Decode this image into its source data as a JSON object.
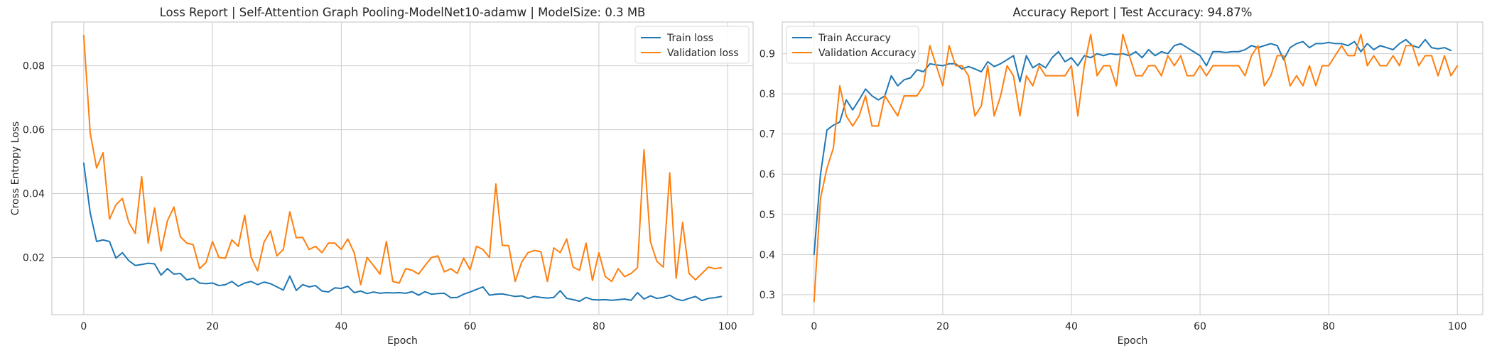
{
  "chart_data": [
    {
      "type": "line",
      "title": "Loss Report | Self-Attention Graph Pooling-ModelNet10-adamw | ModelSize: 0.3 MB",
      "xlabel": "Epoch",
      "ylabel": "Cross Entropy Loss",
      "xlim": [
        -4.95,
        103.95
      ],
      "ylim": [
        0.0021,
        0.0937
      ],
      "xticks": [
        0,
        20,
        40,
        60,
        80,
        100
      ],
      "yticks": [
        0.02,
        0.04,
        0.06,
        0.08
      ],
      "ytick_labels": [
        "0.02",
        "0.04",
        "0.06",
        "0.08"
      ],
      "grid": true,
      "legend_position": "upper right",
      "series": [
        {
          "name": "Train loss",
          "color": "#1f77b4",
          "values": [
            0.0495,
            0.034,
            0.025,
            0.0255,
            0.025,
            0.0198,
            0.0215,
            0.019,
            0.0175,
            0.0178,
            0.0182,
            0.018,
            0.0145,
            0.0165,
            0.0148,
            0.015,
            0.013,
            0.0135,
            0.012,
            0.0118,
            0.012,
            0.0112,
            0.0115,
            0.0125,
            0.011,
            0.012,
            0.0125,
            0.0115,
            0.0123,
            0.0118,
            0.0108,
            0.0098,
            0.0142,
            0.0097,
            0.0115,
            0.0108,
            0.0112,
            0.0095,
            0.0092,
            0.0105,
            0.0103,
            0.011,
            0.009,
            0.0095,
            0.0087,
            0.0092,
            0.0088,
            0.009,
            0.0089,
            0.009,
            0.0088,
            0.0093,
            0.0082,
            0.0093,
            0.0085,
            0.0087,
            0.0088,
            0.0074,
            0.0075,
            0.0085,
            0.0092,
            0.01,
            0.0108,
            0.0082,
            0.0085,
            0.0086,
            0.0082,
            0.0078,
            0.008,
            0.0072,
            0.0078,
            0.0075,
            0.0073,
            0.0075,
            0.0096,
            0.0072,
            0.0068,
            0.0063,
            0.0075,
            0.0068,
            0.0067,
            0.0068,
            0.0066,
            0.0068,
            0.007,
            0.0066,
            0.009,
            0.007,
            0.008,
            0.0072,
            0.0075,
            0.0082,
            0.007,
            0.0065,
            0.0072,
            0.0078,
            0.0065,
            0.0072,
            0.0074,
            0.0078
          ]
        },
        {
          "name": "Validation loss",
          "color": "#ff7f0e",
          "values": [
            0.0895,
            0.059,
            0.048,
            0.0528,
            0.032,
            0.0365,
            0.0385,
            0.031,
            0.0275,
            0.0453,
            0.0245,
            0.0355,
            0.022,
            0.0315,
            0.0358,
            0.0265,
            0.0245,
            0.024,
            0.0165,
            0.0185,
            0.025,
            0.02,
            0.0198,
            0.0255,
            0.0235,
            0.0332,
            0.02,
            0.0158,
            0.0248,
            0.0283,
            0.0205,
            0.0225,
            0.0343,
            0.0262,
            0.0263,
            0.0225,
            0.0235,
            0.0215,
            0.0245,
            0.0245,
            0.0225,
            0.0258,
            0.0215,
            0.0115,
            0.02,
            0.0175,
            0.0148,
            0.025,
            0.0125,
            0.012,
            0.0165,
            0.016,
            0.0148,
            0.0175,
            0.02,
            0.0205,
            0.0155,
            0.0165,
            0.015,
            0.0198,
            0.0162,
            0.0235,
            0.0225,
            0.02,
            0.043,
            0.0238,
            0.0237,
            0.0125,
            0.0185,
            0.0215,
            0.0222,
            0.0218,
            0.0125,
            0.023,
            0.0215,
            0.0258,
            0.017,
            0.016,
            0.0245,
            0.0128,
            0.0215,
            0.014,
            0.0125,
            0.0165,
            0.014,
            0.015,
            0.0168,
            0.0537,
            0.025,
            0.0188,
            0.017,
            0.0465,
            0.0135,
            0.031,
            0.015,
            0.013,
            0.015,
            0.017,
            0.0165,
            0.0168
          ]
        }
      ]
    },
    {
      "type": "line",
      "title": "Accuracy Report | Test Accuracy: 94.87%",
      "xlabel": "Epoch",
      "ylabel": "",
      "xlim": [
        -4.95,
        103.95
      ],
      "ylim": [
        0.2503,
        0.9788
      ],
      "xticks": [
        0,
        20,
        40,
        60,
        80,
        100
      ],
      "yticks": [
        0.3,
        0.4,
        0.5,
        0.6,
        0.7,
        0.8,
        0.9
      ],
      "ytick_labels": [
        "0.3",
        "0.4",
        "0.5",
        "0.6",
        "0.7",
        "0.8",
        "0.9"
      ],
      "grid": true,
      "legend_position": "upper left",
      "series": [
        {
          "name": "Train Accuracy",
          "color": "#1f77b4",
          "values": [
            0.4,
            0.6,
            0.71,
            0.722,
            0.73,
            0.785,
            0.76,
            0.785,
            0.812,
            0.795,
            0.785,
            0.795,
            0.845,
            0.82,
            0.835,
            0.84,
            0.86,
            0.855,
            0.875,
            0.872,
            0.87,
            0.875,
            0.875,
            0.862,
            0.868,
            0.862,
            0.855,
            0.88,
            0.868,
            0.875,
            0.885,
            0.895,
            0.83,
            0.895,
            0.865,
            0.875,
            0.865,
            0.89,
            0.905,
            0.88,
            0.89,
            0.87,
            0.895,
            0.89,
            0.9,
            0.895,
            0.9,
            0.898,
            0.9,
            0.895,
            0.905,
            0.89,
            0.91,
            0.895,
            0.905,
            0.9,
            0.92,
            0.925,
            0.915,
            0.905,
            0.895,
            0.87,
            0.905,
            0.905,
            0.903,
            0.905,
            0.905,
            0.91,
            0.92,
            0.915,
            0.92,
            0.925,
            0.92,
            0.885,
            0.915,
            0.925,
            0.93,
            0.915,
            0.925,
            0.925,
            0.928,
            0.925,
            0.925,
            0.92,
            0.93,
            0.905,
            0.925,
            0.91,
            0.92,
            0.915,
            0.91,
            0.925,
            0.935,
            0.92,
            0.915,
            0.935,
            0.915,
            0.912,
            0.915,
            0.908
          ]
        },
        {
          "name": "Validation Accuracy",
          "color": "#ff7f0e",
          "values": [
            0.283,
            0.54,
            0.615,
            0.665,
            0.82,
            0.745,
            0.72,
            0.745,
            0.795,
            0.72,
            0.72,
            0.795,
            0.77,
            0.745,
            0.795,
            0.795,
            0.795,
            0.82,
            0.92,
            0.87,
            0.82,
            0.92,
            0.87,
            0.87,
            0.845,
            0.745,
            0.77,
            0.87,
            0.745,
            0.795,
            0.87,
            0.845,
            0.745,
            0.845,
            0.82,
            0.87,
            0.845,
            0.845,
            0.845,
            0.845,
            0.87,
            0.745,
            0.87,
            0.948,
            0.845,
            0.87,
            0.87,
            0.82,
            0.948,
            0.895,
            0.845,
            0.845,
            0.87,
            0.87,
            0.845,
            0.895,
            0.87,
            0.895,
            0.845,
            0.845,
            0.87,
            0.845,
            0.87,
            0.87,
            0.87,
            0.87,
            0.87,
            0.845,
            0.895,
            0.92,
            0.82,
            0.845,
            0.895,
            0.895,
            0.82,
            0.845,
            0.82,
            0.87,
            0.82,
            0.87,
            0.87,
            0.895,
            0.92,
            0.895,
            0.895,
            0.948,
            0.87,
            0.895,
            0.87,
            0.87,
            0.895,
            0.87,
            0.92,
            0.92,
            0.87,
            0.895,
            0.895,
            0.845,
            0.895,
            0.845,
            0.87
          ]
        }
      ]
    }
  ]
}
